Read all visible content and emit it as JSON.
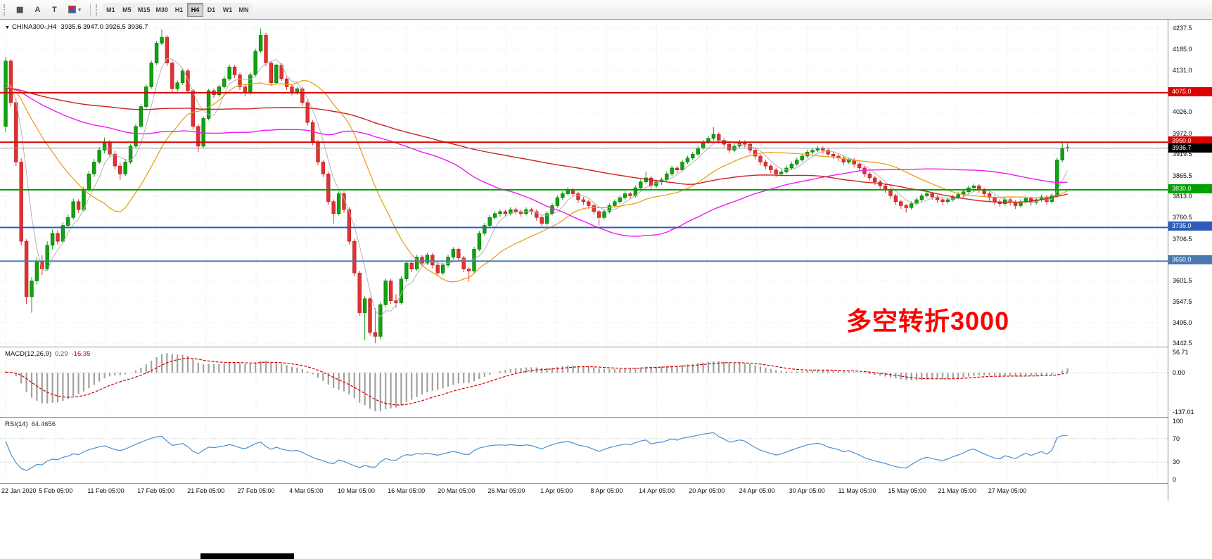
{
  "toolbar": {
    "icons": [
      {
        "name": "chart-window-icon",
        "glyph": "▦"
      },
      {
        "name": "font-a-icon",
        "glyph": "A"
      },
      {
        "name": "text-tool-icon",
        "glyph": "T"
      },
      {
        "name": "draw-color-icon",
        "glyph": "✎"
      }
    ],
    "caret": "▾",
    "timeframes": [
      "M1",
      "M5",
      "M15",
      "M30",
      "H1",
      "H4",
      "D1",
      "W1",
      "MN"
    ],
    "active_timeframe": "H4"
  },
  "chart": {
    "dropdown_icon": "▼",
    "symbol_label": "CHINA300-,H4",
    "ohlc_text": "3935.6 3947.0 3926.5 3936.7",
    "annotation_text": "多空转折3000",
    "annotation_color": "#ff0000",
    "hlines": [
      {
        "price": 4075.0,
        "label": "4075.0",
        "color": "#dd0000",
        "width": 2
      },
      {
        "price": 3950.0,
        "label": "3950.0",
        "color": "#dd0000",
        "width": 2
      },
      {
        "price": 3935.0,
        "label": null,
        "color": "#8d99a6",
        "width": 1
      },
      {
        "price": 3830.0,
        "label": "3830.0",
        "color": "#00a000",
        "width": 2
      },
      {
        "price": 3735.0,
        "label": "3735.0",
        "color": "#2e5cb8",
        "width": 2
      },
      {
        "price": 3650.0,
        "label": "3650.0",
        "color": "#4a78b0",
        "width": 2
      }
    ],
    "last_price_badge": {
      "price": 3936.7,
      "label": "3936.7",
      "color": "#000000"
    },
    "price_ticks": [
      "4237.5",
      "4185.0",
      "4131.0",
      "4026.0",
      "3972.0",
      "3919.5",
      "3865.5",
      "3813.0",
      "3760.5",
      "3706.5",
      "3601.5",
      "3547.5",
      "3495.0",
      "3442.5"
    ],
    "hidden_grid_levels": [
      4078.5,
      3654.0
    ],
    "time_ticks": [
      "22 Jan 2020",
      "5 Feb 05:00",
      "11 Feb 05:00",
      "17 Feb 05:00",
      "21 Feb 05:00",
      "27 Feb 05:00",
      "4 Mar 05:00",
      "10 Mar 05:00",
      "16 Mar 05:00",
      "20 Mar 05:00",
      "26 Mar 05:00",
      "1 Apr 05:00",
      "8 Apr 05:00",
      "14 Apr 05:00",
      "20 Apr 05:00",
      "24 Apr 05:00",
      "30 Apr 05:00",
      "11 May 05:00",
      "15 May 05:00",
      "21 May 05:00",
      "27 May 05:00"
    ]
  },
  "chart_data": {
    "type": "candlestick",
    "symbol": "CHINA300-",
    "timeframe": "H4",
    "visible_price_range": [
      3432,
      4259
    ],
    "colors": {
      "bull": "#0fa30f",
      "bear": "#e03232",
      "bull_stroke": "#077307",
      "bear_stroke": "#b81f1f"
    },
    "warmup": {
      "bars": 150,
      "base": 4085,
      "wobble": 6
    },
    "moving_averages": [
      {
        "name": "ma-fast-gray",
        "period": 5,
        "color": "#b4b4b4",
        "width": 1
      },
      {
        "name": "ma-orange",
        "period": 20,
        "color": "#e8a21a",
        "width": 1.3
      },
      {
        "name": "ma-magenta",
        "period": 60,
        "color": "#f01af0",
        "width": 1.4
      },
      {
        "name": "ma-red",
        "period": 130,
        "color": "#cc2222",
        "width": 1.4
      }
    ],
    "ohlc": [
      [
        3990,
        4165,
        3975,
        4155
      ],
      [
        4155,
        4160,
        4040,
        4050
      ],
      [
        4050,
        4060,
        3890,
        3900
      ],
      [
        3900,
        3910,
        3690,
        3700
      ],
      [
        3700,
        3705,
        3542,
        3560
      ],
      [
        3560,
        3610,
        3520,
        3600
      ],
      [
        3600,
        3660,
        3590,
        3650
      ],
      [
        3650,
        3665,
        3615,
        3630
      ],
      [
        3630,
        3700,
        3625,
        3690
      ],
      [
        3690,
        3730,
        3680,
        3720
      ],
      [
        3720,
        3728,
        3692,
        3700
      ],
      [
        3700,
        3748,
        3695,
        3740
      ],
      [
        3740,
        3768,
        3732,
        3760
      ],
      [
        3760,
        3808,
        3755,
        3800
      ],
      [
        3800,
        3806,
        3772,
        3780
      ],
      [
        3780,
        3838,
        3775,
        3830
      ],
      [
        3830,
        3878,
        3825,
        3870
      ],
      [
        3870,
        3908,
        3862,
        3900
      ],
      [
        3900,
        3938,
        3895,
        3930
      ],
      [
        3930,
        3962,
        3922,
        3950
      ],
      [
        3950,
        3955,
        3912,
        3920
      ],
      [
        3920,
        3928,
        3882,
        3890
      ],
      [
        3890,
        3898,
        3855,
        3870
      ],
      [
        3870,
        3908,
        3865,
        3900
      ],
      [
        3900,
        3946,
        3895,
        3940
      ],
      [
        3940,
        3996,
        3935,
        3990
      ],
      [
        3990,
        4046,
        3985,
        4040
      ],
      [
        4040,
        4096,
        4035,
        4090
      ],
      [
        4090,
        4156,
        4085,
        4150
      ],
      [
        4150,
        4206,
        4145,
        4200
      ],
      [
        4200,
        4235,
        4195,
        4215
      ],
      [
        4215,
        4220,
        4142,
        4150
      ],
      [
        4150,
        4156,
        4075,
        4085
      ],
      [
        4085,
        4106,
        4078,
        4100
      ],
      [
        4100,
        4136,
        4095,
        4130
      ],
      [
        4130,
        4135,
        4072,
        4080
      ],
      [
        4080,
        4085,
        3982,
        3990
      ],
      [
        3990,
        3995,
        3925,
        3940
      ],
      [
        3940,
        4015,
        3935,
        4010
      ],
      [
        4010,
        4085,
        4005,
        4080
      ],
      [
        4080,
        4086,
        4062,
        4070
      ],
      [
        4070,
        4095,
        4065,
        4090
      ],
      [
        4090,
        4116,
        4085,
        4110
      ],
      [
        4110,
        4146,
        4105,
        4140
      ],
      [
        4140,
        4145,
        4112,
        4120
      ],
      [
        4120,
        4126,
        4082,
        4090
      ],
      [
        4090,
        4096,
        4066,
        4075
      ],
      [
        4075,
        4126,
        4070,
        4120
      ],
      [
        4120,
        4186,
        4115,
        4180
      ],
      [
        4180,
        4237,
        4175,
        4220
      ],
      [
        4220,
        4226,
        4142,
        4150
      ],
      [
        4150,
        4155,
        4092,
        4100
      ],
      [
        4100,
        4148,
        4095,
        4145
      ],
      [
        4145,
        4150,
        4105,
        4110
      ],
      [
        4110,
        4116,
        4082,
        4090
      ],
      [
        4090,
        4096,
        4068,
        4075
      ],
      [
        4075,
        4090,
        4070,
        4085
      ],
      [
        4085,
        4090,
        4042,
        4050
      ],
      [
        4050,
        4056,
        3992,
        4000
      ],
      [
        4000,
        4006,
        3942,
        3950
      ],
      [
        3950,
        3956,
        3892,
        3900
      ],
      [
        3900,
        3906,
        3862,
        3870
      ],
      [
        3870,
        3876,
        3792,
        3800
      ],
      [
        3800,
        3806,
        3745,
        3770
      ],
      [
        3770,
        3826,
        3765,
        3820
      ],
      [
        3820,
        3826,
        3772,
        3780
      ],
      [
        3780,
        3786,
        3692,
        3700
      ],
      [
        3700,
        3706,
        3612,
        3620
      ],
      [
        3620,
        3626,
        3512,
        3520
      ],
      [
        3520,
        3561,
        3450,
        3555
      ],
      [
        3555,
        3560,
        3462,
        3470
      ],
      [
        3470,
        3531,
        3443,
        3460
      ],
      [
        3460,
        3546,
        3452,
        3540
      ],
      [
        3540,
        3606,
        3533,
        3600
      ],
      [
        3600,
        3605,
        3542,
        3550
      ],
      [
        3550,
        3566,
        3533,
        3545
      ],
      [
        3545,
        3612,
        3540,
        3605
      ],
      [
        3605,
        3651,
        3598,
        3645
      ],
      [
        3645,
        3650,
        3622,
        3630
      ],
      [
        3630,
        3666,
        3625,
        3660
      ],
      [
        3660,
        3665,
        3638,
        3645
      ],
      [
        3645,
        3671,
        3640,
        3665
      ],
      [
        3665,
        3670,
        3632,
        3640
      ],
      [
        3640,
        3645,
        3612,
        3620
      ],
      [
        3620,
        3646,
        3615,
        3640
      ],
      [
        3640,
        3666,
        3634,
        3660
      ],
      [
        3660,
        3685,
        3654,
        3680
      ],
      [
        3680,
        3684,
        3650,
        3658
      ],
      [
        3658,
        3663,
        3622,
        3630
      ],
      [
        3630,
        3635,
        3598,
        3625
      ],
      [
        3625,
        3686,
        3620,
        3680
      ],
      [
        3680,
        3726,
        3675,
        3720
      ],
      [
        3720,
        3746,
        3715,
        3740
      ],
      [
        3740,
        3766,
        3735,
        3760
      ],
      [
        3760,
        3776,
        3755,
        3770
      ],
      [
        3770,
        3781,
        3762,
        3775
      ],
      [
        3775,
        3780,
        3762,
        3770
      ],
      [
        3770,
        3786,
        3765,
        3780
      ],
      [
        3780,
        3785,
        3768,
        3775
      ],
      [
        3775,
        3780,
        3762,
        3770
      ],
      [
        3770,
        3786,
        3765,
        3780
      ],
      [
        3780,
        3785,
        3768,
        3775
      ],
      [
        3775,
        3780,
        3752,
        3760
      ],
      [
        3760,
        3765,
        3738,
        3745
      ],
      [
        3745,
        3776,
        3740,
        3770
      ],
      [
        3770,
        3796,
        3765,
        3790
      ],
      [
        3790,
        3816,
        3785,
        3810
      ],
      [
        3810,
        3826,
        3805,
        3820
      ],
      [
        3820,
        3836,
        3815,
        3830
      ],
      [
        3830,
        3835,
        3812,
        3820
      ],
      [
        3820,
        3825,
        3797,
        3805
      ],
      [
        3805,
        3812,
        3792,
        3800
      ],
      [
        3800,
        3805,
        3782,
        3790
      ],
      [
        3790,
        3795,
        3767,
        3775
      ],
      [
        3775,
        3780,
        3740,
        3760
      ],
      [
        3760,
        3781,
        3755,
        3775
      ],
      [
        3775,
        3796,
        3770,
        3790
      ],
      [
        3790,
        3806,
        3785,
        3800
      ],
      [
        3800,
        3816,
        3795,
        3810
      ],
      [
        3810,
        3826,
        3805,
        3820
      ],
      [
        3820,
        3825,
        3807,
        3815
      ],
      [
        3815,
        3841,
        3810,
        3835
      ],
      [
        3835,
        3856,
        3830,
        3850
      ],
      [
        3850,
        3876,
        3845,
        3860
      ],
      [
        3860,
        3865,
        3832,
        3840
      ],
      [
        3840,
        3856,
        3835,
        3850
      ],
      [
        3850,
        3861,
        3842,
        3855
      ],
      [
        3855,
        3876,
        3850,
        3870
      ],
      [
        3870,
        3891,
        3865,
        3885
      ],
      [
        3885,
        3890,
        3872,
        3880
      ],
      [
        3880,
        3906,
        3875,
        3900
      ],
      [
        3900,
        3916,
        3895,
        3910
      ],
      [
        3910,
        3926,
        3905,
        3920
      ],
      [
        3920,
        3941,
        3915,
        3935
      ],
      [
        3935,
        3956,
        3930,
        3950
      ],
      [
        3950,
        3966,
        3945,
        3960
      ],
      [
        3960,
        3988,
        3955,
        3970
      ],
      [
        3970,
        3975,
        3947,
        3955
      ],
      [
        3955,
        3960,
        3937,
        3945
      ],
      [
        3945,
        3950,
        3922,
        3930
      ],
      [
        3930,
        3946,
        3925,
        3940
      ],
      [
        3940,
        3956,
        3935,
        3950
      ],
      [
        3950,
        3955,
        3937,
        3945
      ],
      [
        3945,
        3950,
        3922,
        3930
      ],
      [
        3930,
        3935,
        3907,
        3915
      ],
      [
        3915,
        3920,
        3892,
        3900
      ],
      [
        3900,
        3906,
        3882,
        3890
      ],
      [
        3890,
        3895,
        3872,
        3880
      ],
      [
        3880,
        3885,
        3862,
        3870
      ],
      [
        3870,
        3881,
        3865,
        3875
      ],
      [
        3875,
        3891,
        3870,
        3885
      ],
      [
        3885,
        3901,
        3880,
        3895
      ],
      [
        3895,
        3911,
        3890,
        3905
      ],
      [
        3905,
        3921,
        3900,
        3915
      ],
      [
        3915,
        3931,
        3910,
        3925
      ],
      [
        3925,
        3936,
        3920,
        3930
      ],
      [
        3930,
        3941,
        3925,
        3935
      ],
      [
        3935,
        3940,
        3922,
        3930
      ],
      [
        3930,
        3935,
        3912,
        3920
      ],
      [
        3920,
        3926,
        3908,
        3915
      ],
      [
        3915,
        3920,
        3902,
        3910
      ],
      [
        3910,
        3915,
        3892,
        3900
      ],
      [
        3900,
        3911,
        3895,
        3905
      ],
      [
        3905,
        3910,
        3887,
        3895
      ],
      [
        3895,
        3900,
        3877,
        3885
      ],
      [
        3885,
        3890,
        3862,
        3870
      ],
      [
        3870,
        3875,
        3852,
        3860
      ],
      [
        3860,
        3865,
        3842,
        3850
      ],
      [
        3850,
        3855,
        3832,
        3840
      ],
      [
        3840,
        3845,
        3822,
        3830
      ],
      [
        3830,
        3835,
        3807,
        3815
      ],
      [
        3815,
        3820,
        3792,
        3800
      ],
      [
        3800,
        3805,
        3782,
        3790
      ],
      [
        3790,
        3795,
        3772,
        3785
      ],
      [
        3785,
        3801,
        3780,
        3795
      ],
      [
        3795,
        3811,
        3790,
        3805
      ],
      [
        3805,
        3821,
        3800,
        3815
      ],
      [
        3815,
        3826,
        3810,
        3820
      ],
      [
        3820,
        3825,
        3804,
        3812
      ],
      [
        3812,
        3817,
        3797,
        3805
      ],
      [
        3805,
        3810,
        3792,
        3800
      ],
      [
        3800,
        3811,
        3795,
        3805
      ],
      [
        3805,
        3818,
        3800,
        3812
      ],
      [
        3812,
        3824,
        3807,
        3818
      ],
      [
        3818,
        3831,
        3813,
        3825
      ],
      [
        3825,
        3841,
        3820,
        3835
      ],
      [
        3835,
        3846,
        3825,
        3840
      ],
      [
        3840,
        3845,
        3822,
        3830
      ],
      [
        3830,
        3835,
        3812,
        3820
      ],
      [
        3820,
        3825,
        3802,
        3810
      ],
      [
        3810,
        3815,
        3792,
        3800
      ],
      [
        3800,
        3806,
        3787,
        3795
      ],
      [
        3795,
        3811,
        3790,
        3805
      ],
      [
        3805,
        3810,
        3790,
        3798
      ],
      [
        3798,
        3803,
        3782,
        3790
      ],
      [
        3790,
        3806,
        3785,
        3800
      ],
      [
        3800,
        3814,
        3795,
        3808
      ],
      [
        3808,
        3813,
        3790,
        3798
      ],
      [
        3798,
        3811,
        3793,
        3805
      ],
      [
        3805,
        3818,
        3800,
        3812
      ],
      [
        3812,
        3817,
        3792,
        3800
      ],
      [
        3800,
        3821,
        3795,
        3815
      ],
      [
        3815,
        3911,
        3810,
        3905
      ],
      [
        3905,
        3952,
        3900,
        3935.6
      ],
      [
        3935.6,
        3947,
        3926.5,
        3936.7
      ]
    ]
  },
  "macd": {
    "label": "MACD(12,26,9)",
    "value_main": "0.29",
    "value_signal": "-16.35",
    "fast": 12,
    "slow": 26,
    "signal": 9,
    "axis_top": "56.71",
    "axis_zero": "0.00",
    "axis_bottom": "-137.01",
    "histogram_color": "#a0a0a0",
    "signal_color": "#cc0000"
  },
  "rsi": {
    "label": "RSI(14)",
    "value": "64.4656",
    "period": 14,
    "levels": [
      70,
      30
    ],
    "axis": [
      "100",
      "70",
      "30",
      "0"
    ],
    "line_color": "#4a8fd4"
  }
}
